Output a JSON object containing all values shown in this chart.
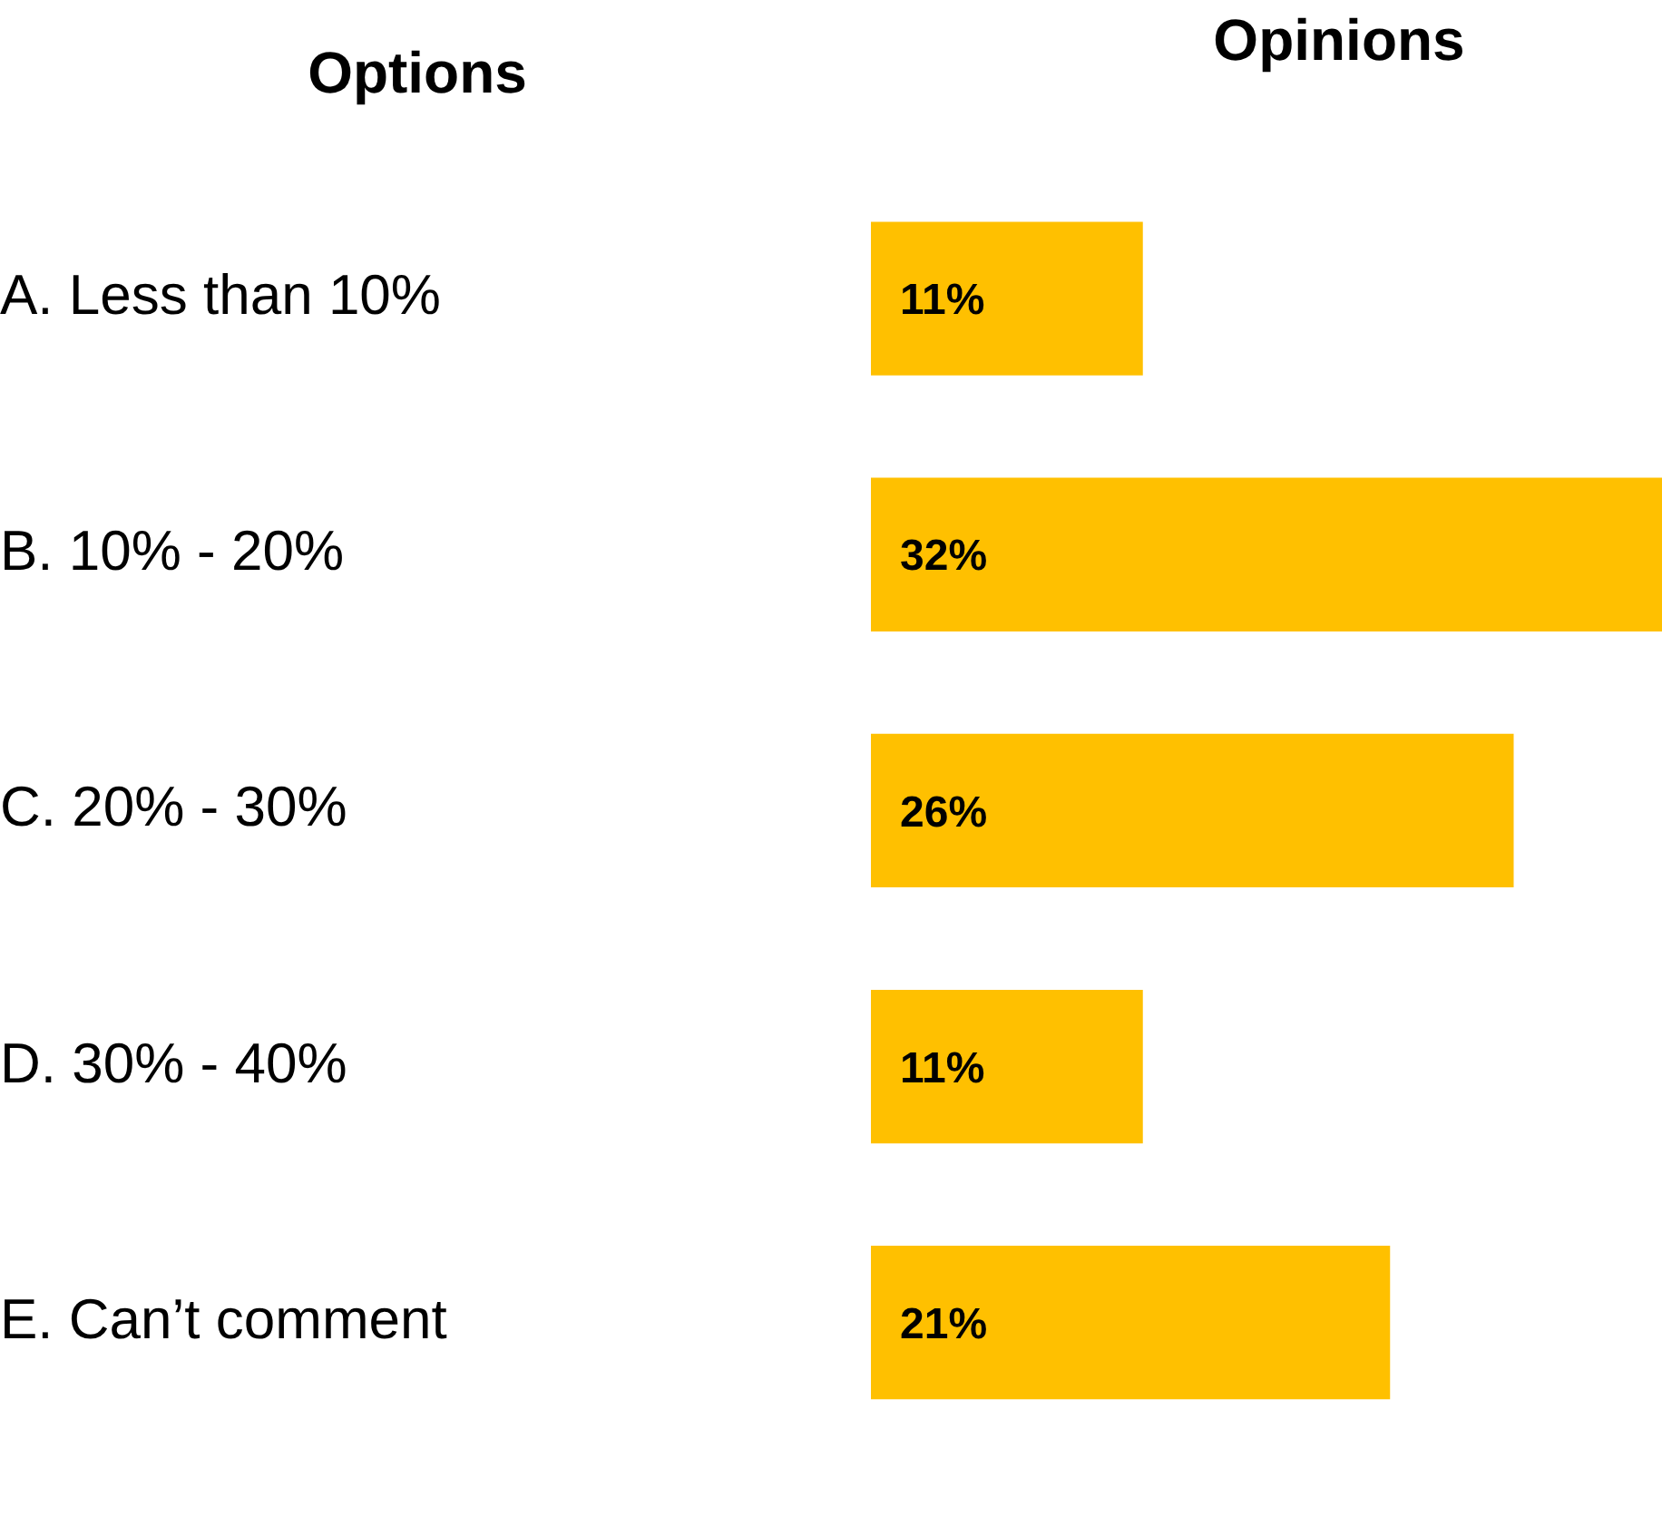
{
  "chart_data": {
    "type": "bar",
    "orientation": "horizontal",
    "title": "Opinions",
    "ylabel": "Options",
    "categories": [
      "A. Less than 10%",
      "B. 10% - 20%",
      "C. 20% - 30%",
      "D. 30% - 40%",
      "E. Can’t comment"
    ],
    "values": [
      11,
      32,
      26,
      11,
      21
    ],
    "color": "#ffc000",
    "value_labels": [
      "11%",
      "32%",
      "26%",
      "11%",
      "21%"
    ],
    "legend": false
  }
}
